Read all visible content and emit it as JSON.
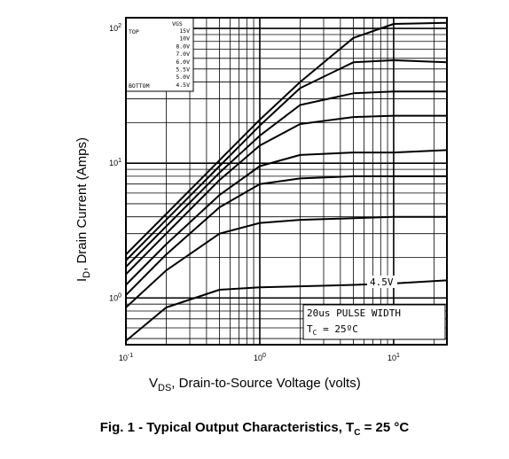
{
  "caption": {
    "prefix": "Fig. 1 - Typical Output Characteristics, T",
    "sub": "C",
    "suffix": " = 25 °C"
  },
  "chart_data": {
    "type": "line",
    "x_scale": "log",
    "y_scale": "log",
    "xlim": [
      0.1,
      25
    ],
    "ylim": [
      0.45,
      120
    ],
    "x_ticks": [
      {
        "value": 0.1,
        "base": "10",
        "exp": "-1"
      },
      {
        "value": 1,
        "base": "10",
        "exp": "0"
      },
      {
        "value": 10,
        "base": "10",
        "exp": "1"
      }
    ],
    "y_ticks": [
      {
        "value": 1,
        "base": "10",
        "exp": "0"
      },
      {
        "value": 10,
        "base": "10",
        "exp": "1"
      },
      {
        "value": 100,
        "base": "10",
        "exp": "2"
      }
    ],
    "ylabel": {
      "main": "I",
      "sub": "D",
      "rest": ", Drain Current (Amps)"
    },
    "xlabel": {
      "main": "V",
      "sub": "DS",
      "rest": ", Drain-to-Source Voltage (volts)"
    },
    "grid": true,
    "legend": {
      "placement": "top-left",
      "header": "VGS",
      "top_label": "TOP",
      "bottom_label": "BOTTOM",
      "entries": [
        "15V",
        "10V",
        "8.0V",
        "7.0V",
        "6.0V",
        "5.5V",
        "5.0V",
        "4.5V"
      ]
    },
    "annotations": {
      "curve_label": "4.5V",
      "pulse": "20us PULSE WIDTH",
      "tc_main": "T",
      "tc_sub": "C",
      "tc_rest": " = 25ºC"
    },
    "series": [
      {
        "name": "15V",
        "x": [
          0.1,
          0.2,
          0.5,
          1,
          2,
          5,
          10,
          25
        ],
        "y": [
          2.1,
          4.2,
          10.5,
          21,
          40,
          85,
          108,
          110
        ]
      },
      {
        "name": "10V",
        "x": [
          0.1,
          0.2,
          0.5,
          1,
          2,
          5,
          10,
          25
        ],
        "y": [
          1.9,
          3.8,
          9.5,
          19,
          36,
          56,
          58,
          56
        ]
      },
      {
        "name": "8.0V",
        "x": [
          0.1,
          0.2,
          0.5,
          1,
          2,
          5,
          10,
          25
        ],
        "y": [
          1.7,
          3.4,
          8.5,
          16,
          27,
          33,
          34,
          34
        ]
      },
      {
        "name": "7.0V",
        "x": [
          0.1,
          0.2,
          0.5,
          1,
          2,
          5,
          10,
          25
        ],
        "y": [
          1.5,
          3.0,
          7.5,
          13.5,
          19.5,
          22,
          22.5,
          22.5
        ]
      },
      {
        "name": "6.0V",
        "x": [
          0.1,
          0.2,
          0.5,
          1,
          2,
          5,
          10,
          25
        ],
        "y": [
          1.25,
          2.5,
          5.8,
          9.5,
          11.5,
          12,
          12,
          12.5
        ]
      },
      {
        "name": "5.5V",
        "x": [
          0.1,
          0.2,
          0.5,
          1,
          2,
          5,
          10,
          25
        ],
        "y": [
          1.05,
          2.1,
          4.7,
          7.0,
          7.7,
          8.0,
          8.0,
          8.0
        ]
      },
      {
        "name": "5.0V",
        "x": [
          0.1,
          0.2,
          0.5,
          1,
          2,
          5,
          10,
          25
        ],
        "y": [
          0.85,
          1.6,
          3.0,
          3.6,
          3.8,
          3.9,
          4.0,
          4.0
        ]
      },
      {
        "name": "4.5V",
        "x": [
          0.1,
          0.2,
          0.5,
          1,
          2,
          5,
          10,
          25
        ],
        "y": [
          0.48,
          0.85,
          1.15,
          1.2,
          1.22,
          1.25,
          1.28,
          1.35
        ]
      }
    ]
  }
}
